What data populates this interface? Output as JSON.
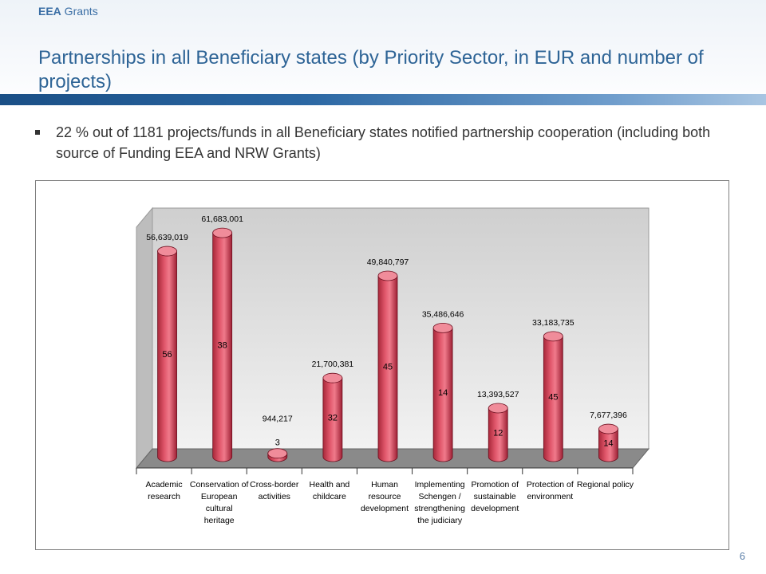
{
  "header": {
    "brand_bold": "EEA",
    "brand_rest": " Grants",
    "title": "Partnerships in all Beneficiary states (by Priority Sector, in EUR and number of projects)"
  },
  "bullet": "22 %  out of 1181 projects/funds in all Beneficiary states notified partnership cooperation (including both source of Funding EEA  and NRW Grants)",
  "page_number": "6",
  "chart_data": {
    "type": "bar",
    "style": "3d-cylinder",
    "categories": [
      [
        "Academic",
        "research"
      ],
      [
        "Conservation of",
        "European",
        "cultural",
        "heritage"
      ],
      [
        "Cross-border",
        "activities"
      ],
      [
        "Health and",
        "childcare"
      ],
      [
        "Human",
        "resource",
        "development"
      ],
      [
        "Implementing",
        "Schengen /",
        "strengthening",
        "the judiciary"
      ],
      [
        "Promotion of",
        "sustainable",
        "development"
      ],
      [
        "Protection of",
        "environment"
      ],
      [
        "Regional policy"
      ]
    ],
    "values": [
      56639019,
      61683001,
      944217,
      21700381,
      49840797,
      35486646,
      13393527,
      33183735,
      7677396
    ],
    "value_labels": [
      "56,639,019",
      "61,683,001",
      "944,217",
      "21,700,381",
      "49,840,797",
      "35,486,646",
      "13,393,527",
      "33,183,735",
      "7,677,396"
    ],
    "project_counts": [
      "56",
      "38",
      "3",
      "32",
      "45",
      "14",
      "12",
      "45",
      "14"
    ],
    "ylim": [
      0,
      65000000
    ],
    "colors": {
      "bar": "#e0566a",
      "bar_top": "#f08c9a",
      "wall": "#dcdcdc",
      "floor": "#8a8a8a"
    }
  }
}
